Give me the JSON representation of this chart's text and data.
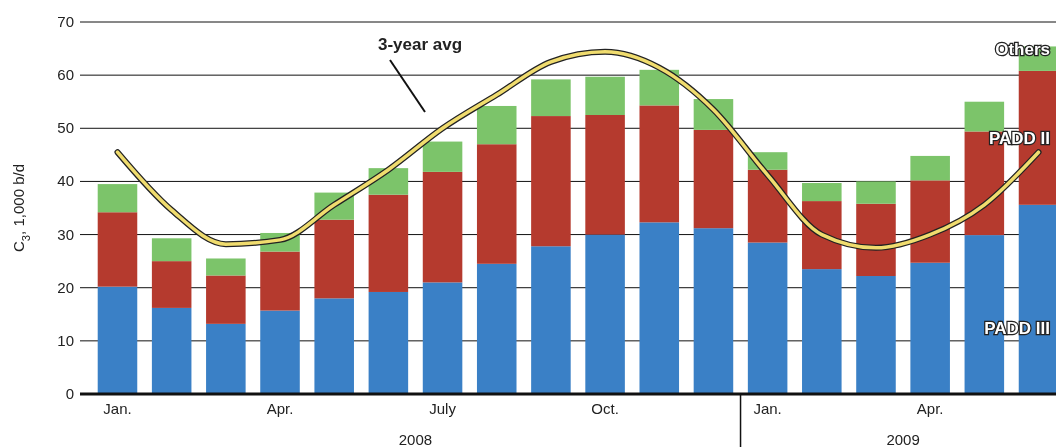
{
  "chart_data": {
    "type": "bar",
    "stacked": true,
    "ylabel": "C$_{3}$, 1,000 b/d",
    "categories": [
      "Jan.",
      null,
      null,
      "Apr.",
      null,
      null,
      "July",
      null,
      null,
      "Oct.",
      null,
      null,
      "Jan.",
      null,
      null,
      "Apr.",
      null,
      null
    ],
    "series": [
      {
        "name": "PADD III",
        "color": "#3a80c6",
        "values": [
          20.2,
          16.2,
          13.2,
          15.7,
          18,
          19.2,
          21,
          24.5,
          27.8,
          30,
          32.3,
          31.2,
          28.5,
          23.5,
          22.2,
          24.7,
          29.9,
          35.6
        ]
      },
      {
        "name": "PADD II",
        "color": "#b53a2e",
        "values": [
          14,
          8.8,
          9.1,
          11.1,
          14.8,
          18.3,
          20.8,
          22.5,
          24.5,
          22.5,
          22,
          18.5,
          13.7,
          12.8,
          13.6,
          15.5,
          19.5,
          25.2
        ]
      },
      {
        "name": "Others",
        "color": "#7cc46a",
        "values": [
          5.3,
          4.3,
          3.2,
          3.5,
          5.1,
          5,
          5.7,
          7.2,
          6.9,
          7.2,
          6.7,
          5.8,
          3.3,
          3.4,
          4.2,
          4.6,
          5.6,
          4.6
        ]
      },
      {
        "type": "line",
        "color": "#f0dc6e",
        "values": [
          45.5,
          34.6,
          28.2,
          29,
          35.6,
          42.2,
          50,
          56.3,
          62.5,
          64.4,
          61.4,
          53.5,
          41.2,
          30,
          27.5,
          30,
          35.6,
          45.5
        ]
      }
    ],
    "ylim": [
      0,
      70
    ],
    "yticks": [
      0,
      10,
      20,
      30,
      40,
      50,
      60,
      70
    ],
    "grid": "y",
    "legend": false,
    "annotations": [
      "3-year avg",
      "2008",
      "2009"
    ]
  }
}
